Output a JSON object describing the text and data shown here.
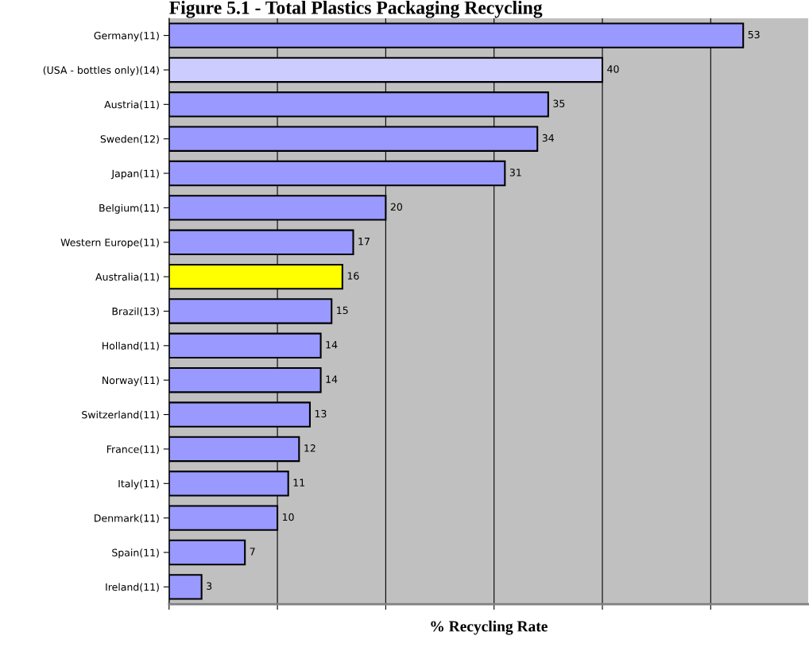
{
  "chart_data": {
    "type": "bar",
    "orientation": "horizontal",
    "title": "Figure 5.1 - Total Plastics Packaging Recycling",
    "xlabel": "% Recycling Rate",
    "categories": [
      "Germany(11)",
      "(USA - bottles only)(14)",
      "Austria(11)",
      "Sweden(12)",
      "Japan(11)",
      "Belgium(11)",
      "Western Europe(11)",
      "Australia(11)",
      "Brazil(13)",
      "Holland(11)",
      "Norway(11)",
      "Switzerland(11)",
      "France(11)",
      "Italy(11)",
      "Denmark(11)",
      "Spain(11)",
      "Ireland(11)"
    ],
    "values": [
      53,
      40,
      35,
      34,
      31,
      20,
      17,
      16,
      15,
      14,
      14,
      13,
      12,
      11,
      10,
      7,
      3
    ],
    "colors": [
      "#9999ff",
      "#ccccff",
      "#9999ff",
      "#9999ff",
      "#9999ff",
      "#9999ff",
      "#9999ff",
      "#ffff00",
      "#9999ff",
      "#9999ff",
      "#9999ff",
      "#9999ff",
      "#9999ff",
      "#9999ff",
      "#9999ff",
      "#9999ff",
      "#9999ff"
    ],
    "xlim": [
      0,
      59
    ],
    "xticks": [
      {
        "value": 0,
        "label": null
      },
      {
        "value": 10,
        "label": null
      },
      {
        "value": 20,
        "label": null
      },
      {
        "value": 30,
        "label": null
      },
      {
        "value": 40,
        "label": null
      },
      {
        "value": 50,
        "label": null
      }
    ],
    "tick_labels": "y",
    "grid": "x",
    "data_labels": true
  }
}
